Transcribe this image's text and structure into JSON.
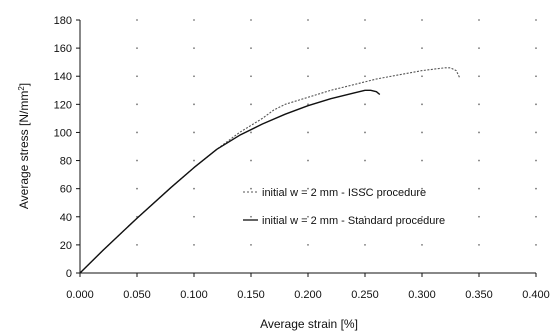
{
  "chart_data": {
    "type": "line",
    "title": "",
    "xlabel": "Average strain [%]",
    "ylabel_prefix": "Average stress [N/mm",
    "ylabel_sup": "2",
    "ylabel_suffix": "]",
    "xlim": [
      0.0,
      0.4
    ],
    "ylim": [
      0,
      180
    ],
    "xticks": [
      0.0,
      0.05,
      0.1,
      0.15,
      0.2,
      0.25,
      0.3,
      0.35,
      0.4
    ],
    "xtick_labels": [
      "0.000",
      "0.050",
      "0.100",
      "0.150",
      "0.200",
      "0.250",
      "0.300",
      "0.350",
      "0.400"
    ],
    "yticks": [
      0,
      20,
      40,
      60,
      80,
      100,
      120,
      140,
      160,
      180
    ],
    "ytick_labels": [
      "0",
      "20",
      "40",
      "60",
      "80",
      "100",
      "120",
      "140",
      "160",
      "180"
    ],
    "grid": "dotted",
    "legend_position": "center-right",
    "series": [
      {
        "name": "initial w = 2 mm - ISSC procedure",
        "style": "dashed",
        "color": "#555555",
        "x": [
          0.0,
          0.02,
          0.05,
          0.08,
          0.1,
          0.12,
          0.14,
          0.16,
          0.17,
          0.18,
          0.2,
          0.22,
          0.24,
          0.26,
          0.28,
          0.3,
          0.31,
          0.32,
          0.325,
          0.33,
          0.333
        ],
        "y": [
          0,
          16,
          39,
          61,
          75,
          88,
          100,
          110,
          116,
          120,
          125,
          130,
          134,
          138,
          141,
          144,
          145,
          146,
          146,
          144,
          139
        ]
      },
      {
        "name": "initial w = 2 mm - Standard procedure",
        "style": "solid",
        "color": "#111111",
        "x": [
          0.0,
          0.02,
          0.05,
          0.08,
          0.1,
          0.12,
          0.14,
          0.16,
          0.18,
          0.2,
          0.22,
          0.24,
          0.25,
          0.255,
          0.26,
          0.263
        ],
        "y": [
          0,
          16,
          39,
          61,
          75,
          88,
          98,
          106,
          113,
          119,
          124,
          128,
          130,
          130,
          129,
          127
        ]
      }
    ]
  }
}
